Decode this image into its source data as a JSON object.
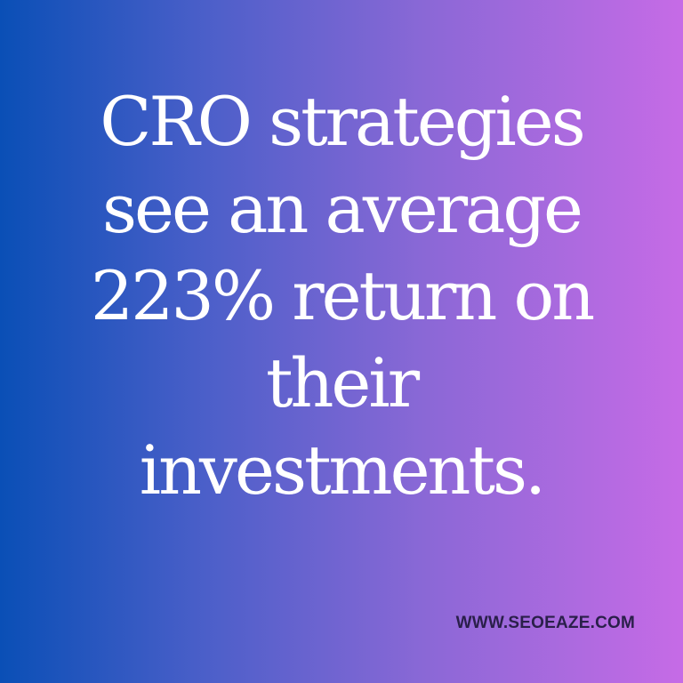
{
  "headline": {
    "lines": [
      "CRO strategies",
      "see an average",
      "223% return on",
      "their",
      "investments."
    ]
  },
  "footer": {
    "website": "WWW.SEOEAZE.COM"
  },
  "colors": {
    "gradient_left": "#0a4fb6",
    "gradient_right": "#c66be6",
    "text": "#ffffff",
    "website_text": "#2a1f4a"
  }
}
